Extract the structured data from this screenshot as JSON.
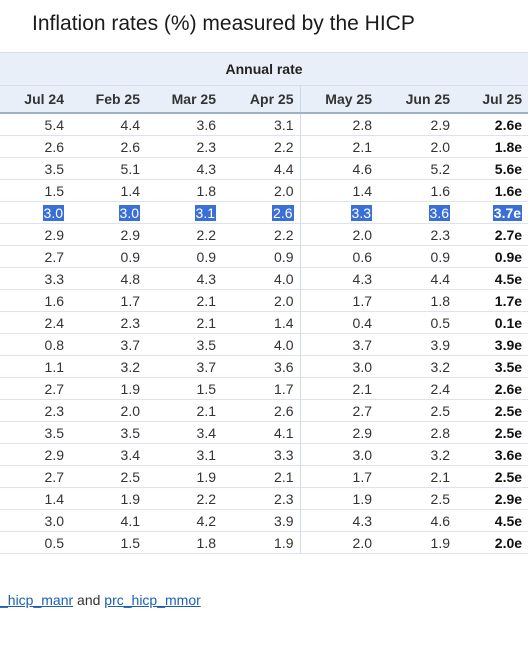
{
  "title": "Inflation rates (%) measured by the HICP",
  "group_header": "Annual rate",
  "columns": [
    "Jul 24",
    "Feb 25",
    "Mar 25",
    "Apr 25",
    "May 25",
    "Jun 25",
    "Jul 25"
  ],
  "rows": [
    [
      "5.4",
      "4.4",
      "3.6",
      "3.1",
      "2.8",
      "2.9",
      "2.6e"
    ],
    [
      "2.6",
      "2.6",
      "2.3",
      "2.2",
      "2.1",
      "2.0",
      "1.8e"
    ],
    [
      "3.5",
      "5.1",
      "4.3",
      "4.4",
      "4.6",
      "5.2",
      "5.6e"
    ],
    [
      "1.5",
      "1.4",
      "1.8",
      "2.0",
      "1.4",
      "1.6",
      "1.6e"
    ],
    [
      "3.0",
      "3.0",
      "3.1",
      "2.6",
      "3.3",
      "3.6",
      "3.7e"
    ],
    [
      "2.9",
      "2.9",
      "2.2",
      "2.2",
      "2.0",
      "2.3",
      "2.7e"
    ],
    [
      "2.7",
      "0.9",
      "0.9",
      "0.9",
      "0.6",
      "0.9",
      "0.9e"
    ],
    [
      "3.3",
      "4.8",
      "4.3",
      "4.0",
      "4.3",
      "4.4",
      "4.5e"
    ],
    [
      "1.6",
      "1.7",
      "2.1",
      "2.0",
      "1.7",
      "1.8",
      "1.7e"
    ],
    [
      "2.4",
      "2.3",
      "2.1",
      "1.4",
      "0.4",
      "0.5",
      "0.1e"
    ],
    [
      "0.8",
      "3.7",
      "3.5",
      "4.0",
      "3.7",
      "3.9",
      "3.9e"
    ],
    [
      "1.1",
      "3.2",
      "3.7",
      "3.6",
      "3.0",
      "3.2",
      "3.5e"
    ],
    [
      "2.7",
      "1.9",
      "1.5",
      "1.7",
      "2.1",
      "2.4",
      "2.6e"
    ],
    [
      "2.3",
      "2.0",
      "2.1",
      "2.6",
      "2.7",
      "2.5",
      "2.5e"
    ],
    [
      "3.5",
      "3.5",
      "3.4",
      "4.1",
      "2.9",
      "2.8",
      "2.5e"
    ],
    [
      "2.9",
      "3.4",
      "3.1",
      "3.3",
      "3.0",
      "3.2",
      "3.6e"
    ],
    [
      "2.7",
      "2.5",
      "1.9",
      "2.1",
      "1.7",
      "2.1",
      "2.5e"
    ],
    [
      "1.4",
      "1.9",
      "2.2",
      "2.3",
      "1.9",
      "2.5",
      "2.9e"
    ],
    [
      "3.0",
      "4.1",
      "4.2",
      "3.9",
      "4.3",
      "4.6",
      "4.5e"
    ],
    [
      "0.5",
      "1.5",
      "1.8",
      "1.9",
      "2.0",
      "1.9",
      "2.0e"
    ]
  ],
  "highlighted_row": 4,
  "footer": {
    "link1": "_hicp_manr",
    "connector": " and ",
    "link2": "prc_hicp_mmor"
  }
}
